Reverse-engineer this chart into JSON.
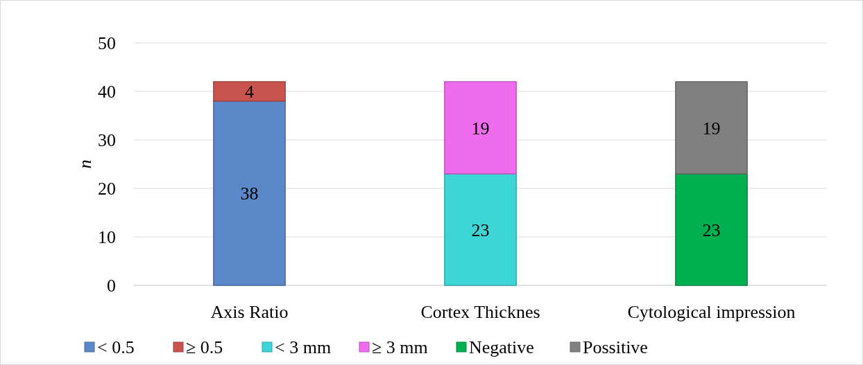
{
  "chart_data": {
    "type": "bar",
    "stacked": true,
    "ylabel": "n",
    "categories": [
      "Axis Ratio",
      "Cortex Thicknes",
      "Cytological impression"
    ],
    "series": [
      {
        "name": "< 0.5",
        "color": "#5a88c8",
        "values": [
          38,
          null,
          null
        ]
      },
      {
        "name": "≥ 0.5",
        "color": "#c9544f",
        "values": [
          4,
          null,
          null
        ]
      },
      {
        "name": "< 3 mm",
        "color": "#3dd5d5",
        "values": [
          null,
          23,
          null
        ]
      },
      {
        "name": "≥ 3 mm",
        "color": "#ef6cef",
        "values": [
          null,
          19,
          null
        ]
      },
      {
        "name": "Negative",
        "color": "#00b050",
        "values": [
          null,
          null,
          23
        ]
      },
      {
        "name": "Possitive",
        "color": "#808080",
        "values": [
          null,
          null,
          19
        ]
      }
    ],
    "ylim": [
      0,
      50
    ],
    "yticks": [
      0,
      10,
      20,
      30,
      40,
      50
    ],
    "grid": "y",
    "legend": "bottom",
    "data_labels": true
  }
}
